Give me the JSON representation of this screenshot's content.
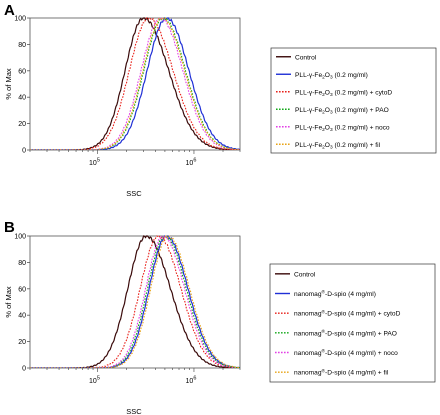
{
  "chart_data": [
    {
      "panel_label": "A",
      "type": "line",
      "xlabel": "SSC",
      "ylabel": "% of Max",
      "xscale": "log",
      "xlim": [
        20000,
        3000000
      ],
      "ylim": [
        0,
        100
      ],
      "xticks": [
        {
          "value": 100000,
          "base": "10",
          "exp": "5"
        },
        {
          "value": 1000000,
          "base": "10",
          "exp": "6"
        }
      ],
      "yticks": [
        0,
        20,
        40,
        60,
        80,
        100
      ],
      "legend_position": "right",
      "series": [
        {
          "legend": [
            "Control"
          ],
          "color": "#3a0a0a",
          "dash": "solid",
          "peak": 300000,
          "left_w": 0.19,
          "right_w": 0.26
        },
        {
          "legend": [
            "PLL-γ-Fe",
            "2",
            "O",
            "3",
            "  (0.2 mg/ml)"
          ],
          "color": "#1f2fd6",
          "dash": "solid",
          "peak": 520000,
          "left_w": 0.2,
          "right_w": 0.23
        },
        {
          "legend": [
            "PLL-γ-Fe",
            "2",
            "O",
            "3",
            " (0.2 mg/ml) + cytoD"
          ],
          "color": "#e8211a",
          "dash": "dotted",
          "peak": 340000,
          "left_w": 0.2,
          "right_w": 0.25
        },
        {
          "legend": [
            "PLL-γ-Fe",
            "2",
            "O",
            "3",
            " (0.2 mg/ml) + PAO"
          ],
          "color": "#12a818",
          "dash": "dotted",
          "peak": 480000,
          "left_w": 0.2,
          "right_w": 0.23
        },
        {
          "legend": [
            "PLL-γ-Fe",
            "2",
            "O",
            "3",
            " (0.2 mg/ml) + noco"
          ],
          "color": "#e23ee6",
          "dash": "dotted",
          "peak": 450000,
          "left_w": 0.2,
          "right_w": 0.23
        },
        {
          "legend": [
            "PLL-γ-Fe",
            "2",
            "O",
            "3",
            " (0.2 mg/ml) + fil"
          ],
          "color": "#e8a417",
          "dash": "dotted",
          "peak": 470000,
          "left_w": 0.2,
          "right_w": 0.23
        }
      ]
    },
    {
      "panel_label": "B",
      "type": "line",
      "xlabel": "SSC",
      "ylabel": "% of Max",
      "xscale": "log",
      "xlim": [
        20000,
        3000000
      ],
      "ylim": [
        0,
        100
      ],
      "xticks": [
        {
          "value": 100000,
          "base": "10",
          "exp": "5"
        },
        {
          "value": 1000000,
          "base": "10",
          "exp": "6"
        }
      ],
      "yticks": [
        0,
        20,
        40,
        60,
        80,
        100
      ],
      "legend_position": "right",
      "series": [
        {
          "legend": [
            "Control"
          ],
          "color": "#3a0a0a",
          "dash": "solid",
          "peak": 320000,
          "left_w": 0.19,
          "right_w": 0.25
        },
        {
          "legend": [
            "nanomag",
            "®",
            "-D-spio (4 mg/ml)"
          ],
          "color": "#1f2fd6",
          "dash": "solid",
          "peak": 520000,
          "left_w": 0.18,
          "right_w": 0.22
        },
        {
          "legend": [
            "nanomag",
            "®",
            "-D-spio (4 mg/ml) + cytoD"
          ],
          "color": "#e8211a",
          "dash": "dotted",
          "peak": 430000,
          "left_w": 0.19,
          "right_w": 0.23
        },
        {
          "legend": [
            "nanomag",
            "®",
            "-D-spio  (4 mg/ml) + PAO"
          ],
          "color": "#12a818",
          "dash": "dotted",
          "peak": 500000,
          "left_w": 0.18,
          "right_w": 0.22
        },
        {
          "legend": [
            "nanomag",
            "®",
            "-D-spio (4 mg/ml) + noco"
          ],
          "color": "#e23ee6",
          "dash": "dotted",
          "peak": 480000,
          "left_w": 0.18,
          "right_w": 0.22
        },
        {
          "legend": [
            "nanomag",
            "®",
            "-D-spio (4 mg/ml) + fil"
          ],
          "color": "#e8a417",
          "dash": "dotted",
          "peak": 540000,
          "left_w": 0.18,
          "right_w": 0.22
        }
      ]
    }
  ]
}
